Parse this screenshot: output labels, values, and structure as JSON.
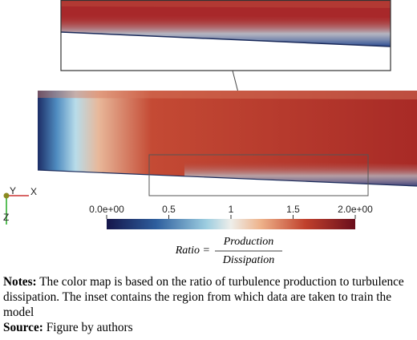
{
  "axes_triad": {
    "y": "Y",
    "x": "X",
    "z": "Z"
  },
  "colorbar": {
    "lim": [
      0,
      2
    ],
    "ticks": [
      {
        "value": 0,
        "label": "0.0e+00"
      },
      0.5,
      1,
      1.5,
      {
        "value": 2,
        "label": "2.0e+00"
      }
    ]
  },
  "formula": {
    "lhs": "Ratio =",
    "numerator": "Production",
    "denominator": "Dissipation"
  },
  "notes": {
    "label": "Notes:",
    "text": "The color map is based on the ratio of turbulence production to turbulence dissipation. The inset contains the region from which data are taken to train the model"
  },
  "source": {
    "label": "Source:",
    "text": "Figure by authors"
  }
}
